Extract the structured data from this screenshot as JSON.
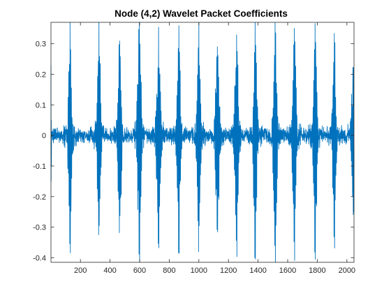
{
  "chart_data": {
    "type": "line",
    "title": "Node (4,2) Wavelet Packet Coefficients",
    "xlabel": "",
    "ylabel": "",
    "xlim": [
      1,
      2048
    ],
    "ylim": [
      -0.415,
      0.37
    ],
    "x_ticks": [
      200,
      400,
      600,
      800,
      1000,
      1200,
      1400,
      1600,
      1800,
      2000
    ],
    "x_tick_labels": [
      "200",
      "400",
      "600",
      "800",
      "1000",
      "1200",
      "1400",
      "1600",
      "1800",
      "2000"
    ],
    "y_ticks": [
      -0.4,
      -0.3,
      -0.2,
      -0.1,
      0,
      0.1,
      0.2,
      0.3
    ],
    "y_tick_labels": [
      "-0.4",
      "-0.3",
      "-0.2",
      "-0.1",
      "0",
      "0.1",
      "0.2",
      "0.3"
    ],
    "grid": false,
    "box": true,
    "series": [
      {
        "color": "#0072bd",
        "burst_centers": [
          130,
          325,
          465,
          598,
          728,
          865,
          1000,
          1125,
          1255,
          1380,
          1515,
          1645,
          1785,
          1915,
          2045
        ],
        "burst_peaks_max": [
          0.335,
          0.335,
          0.335,
          0.365,
          0.33,
          0.33,
          0.34,
          0.33,
          0.33,
          0.34,
          0.34,
          0.325,
          0.33,
          0.32,
          0.25
        ],
        "burst_peaks_min": [
          -0.38,
          -0.34,
          -0.33,
          -0.4,
          -0.38,
          -0.35,
          -0.37,
          -0.36,
          -0.41,
          -0.4,
          -0.4,
          -0.41,
          -0.38,
          -0.32,
          -0.25
        ],
        "start_values": [
          0.23,
          -0.15,
          0.05,
          -0.1
        ]
      }
    ]
  }
}
